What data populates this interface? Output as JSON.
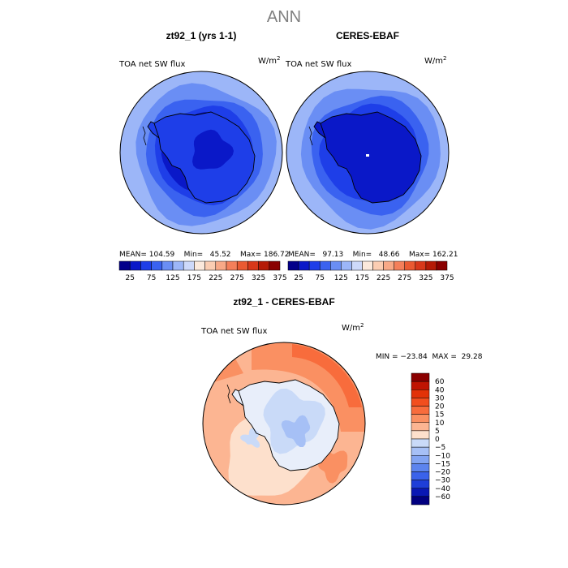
{
  "chart_data": {
    "type": "polar-contour-map",
    "season_title": "ANN",
    "panels": [
      {
        "title": "zt92_1 (yrs 1-1)",
        "field_label": "TOA net SW flux",
        "units_prefix": "W/m",
        "units_exp": "2",
        "stats_text": "MEAN= 104.59    Min=   45.52    Max= 186.72",
        "stats": {
          "mean": 104.59,
          "min": 45.52,
          "max": 186.72
        }
      },
      {
        "title": "CERES-EBAF",
        "field_label": "TOA net SW flux",
        "units_prefix": "W/m",
        "units_exp": "2",
        "stats_text": "MEAN=   97.13    Min=   48.66    Max= 162.21",
        "stats": {
          "mean": 97.13,
          "min": 48.66,
          "max": 162.21
        }
      }
    ],
    "abs_colorbar": {
      "labels": [
        "25",
        "75",
        "125",
        "175",
        "225",
        "275",
        "325",
        "375"
      ],
      "colors": [
        "#03008a",
        "#0a18c8",
        "#1e3ee8",
        "#3a62f0",
        "#6a8ef4",
        "#9cb6f8",
        "#cdd9fa",
        "#fbe9dc",
        "#fbcdb2",
        "#f8a987",
        "#f47f5a",
        "#ea5a32",
        "#d8381a",
        "#b51a06",
        "#8a0000"
      ]
    },
    "diff_panel": {
      "title": "zt92_1 - CERES-EBAF",
      "field_label": "TOA net SW flux",
      "units_prefix": "W/m",
      "units_exp": "2",
      "minmax_text": "MIN = −23.84  MAX =  29.28",
      "min": -23.84,
      "max": 29.28
    },
    "diff_colorbar": {
      "labels": [
        "60",
        "40",
        "30",
        "20",
        "15",
        "10",
        "5",
        "0",
        "−5",
        "−10",
        "−15",
        "−20",
        "−30",
        "−40",
        "−60"
      ],
      "colors": [
        "#8a0000",
        "#bf1402",
        "#e23208",
        "#f24e1e",
        "#f86c3c",
        "#fa9062",
        "#fcb592",
        "#fde0cc",
        "#c9daf8",
        "#a6c0f6",
        "#82a4f2",
        "#5c84ee",
        "#3a62ea",
        "#1e3ed8",
        "#0a18b4",
        "#020080"
      ]
    },
    "map_colors": {
      "abs1_rings": [
        "#9cb6f8",
        "#6a8ef4",
        "#3a62f0",
        "#1e3ee8",
        "#0a18c8"
      ],
      "abs1_land": "#1e3ee8",
      "abs1_core": "#0a18c8",
      "abs2_rings": [
        "#9cb6f8",
        "#6a8ef4",
        "#3a62f0",
        "#1e3ee8"
      ],
      "abs2_land": "#0a18c8",
      "diff_base": "#fcb592",
      "diff_ring": "#fa9062",
      "diff_ring2": "#f86c3c",
      "diff_pale": "#fde0cc",
      "diff_land": "#c9daf8",
      "diff_land2": "#a6c0f6",
      "diff_land3": "#e8eefa"
    }
  }
}
